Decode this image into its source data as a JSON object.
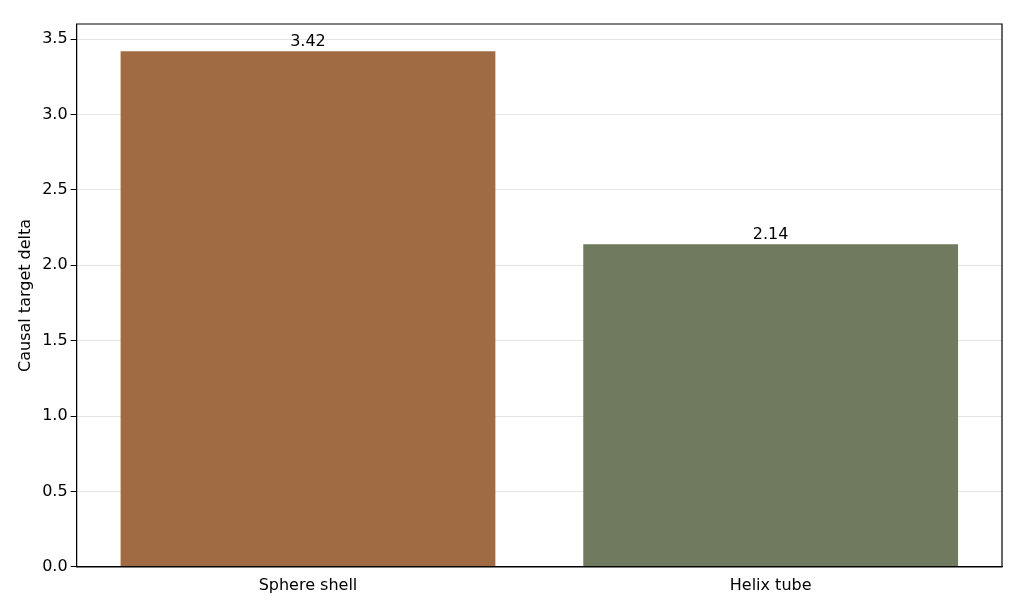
{
  "chart_data": {
    "type": "bar",
    "ylabel": "Causal target delta",
    "categories": [
      "Sphere shell",
      "Helix tube"
    ],
    "values": [
      3.42,
      2.14
    ],
    "colors": [
      "#a06b43",
      "#6f7a5e"
    ],
    "ylim": [
      0,
      3.6
    ],
    "yticks": [
      {
        "value": 0,
        "label": "0.0"
      },
      {
        "value": 0.5,
        "label": "0.5"
      },
      {
        "value": 1,
        "label": "1.0"
      },
      {
        "value": 1.5,
        "label": "1.5"
      },
      {
        "value": 2,
        "label": "2.0"
      },
      {
        "value": 2.5,
        "label": "2.5"
      },
      {
        "value": 3,
        "label": "3.0"
      },
      {
        "value": 3.5,
        "label": "3.5"
      }
    ],
    "grid": "y",
    "data_labels": true,
    "legend": false
  }
}
